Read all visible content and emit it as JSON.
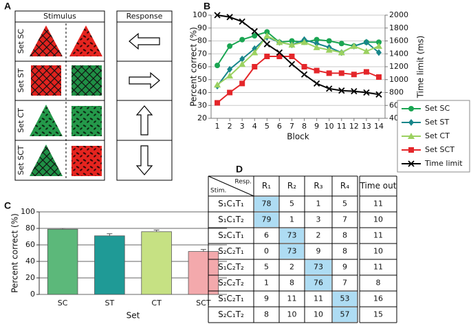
{
  "panel_labels": [
    "A",
    "B",
    "C",
    "D"
  ],
  "stimulus_response": {
    "stimulus_header": "Stimulus",
    "response_header": "Response",
    "rows": [
      "Set SC",
      "Set ST",
      "Set CT",
      "Set SCT"
    ]
  },
  "chart_data": [
    {
      "type": "line",
      "ylabel": "Percent correct (%)",
      "y2label": "Time limit (ms)",
      "xlabel": "Block",
      "x": [
        1,
        2,
        3,
        4,
        5,
        6,
        7,
        8,
        9,
        10,
        11,
        12,
        13,
        14
      ],
      "xlim": [
        0.5,
        14.5
      ],
      "xticks": [
        1,
        2,
        3,
        4,
        5,
        6,
        7,
        8,
        9,
        10,
        11,
        12,
        13,
        14
      ],
      "ylim": [
        20,
        100
      ],
      "yticks": [
        20,
        30,
        40,
        50,
        60,
        70,
        80,
        90,
        100
      ],
      "y2lim": [
        400,
        2000
      ],
      "y2ticks": [
        400,
        600,
        800,
        1000,
        1200,
        1400,
        1600,
        1800,
        2000
      ],
      "grid": true,
      "legend": "right",
      "series": [
        {
          "name": "Set SC",
          "color": "#1aa552",
          "marker": "circle",
          "values": [
            61,
            76,
            81,
            84,
            87,
            79,
            80,
            79,
            81,
            80,
            78,
            76,
            79,
            79
          ]
        },
        {
          "name": "Set ST",
          "color": "#17868a",
          "marker": "diamond",
          "values": [
            45,
            58,
            66,
            74,
            83,
            79,
            77,
            81,
            78,
            75,
            71,
            76,
            79,
            71
          ]
        },
        {
          "name": "Set CT",
          "color": "#9bd160",
          "marker": "triangle",
          "values": [
            46,
            53,
            62,
            71,
            84,
            79,
            77,
            79,
            75,
            73,
            71,
            76,
            72,
            76
          ]
        },
        {
          "name": "Set SCT",
          "color": "#e4262a",
          "marker": "square",
          "values": [
            32,
            40,
            47,
            60,
            68,
            68,
            68,
            60,
            57,
            55,
            55,
            54,
            56,
            52
          ]
        },
        {
          "name": "Time limit",
          "color": "#000000",
          "marker": "x",
          "axis": "y2",
          "values": [
            2000,
            1970,
            1900,
            1750,
            1550,
            1420,
            1240,
            1080,
            940,
            860,
            830,
            820,
            800,
            770
          ]
        }
      ]
    },
    {
      "type": "bar",
      "ylabel": "Percent correct (%)",
      "xlabel": "Set",
      "categories": [
        "SC",
        "ST",
        "CT",
        "SCT"
      ],
      "values": [
        79,
        71,
        76,
        52
      ],
      "errors": [
        1,
        2.5,
        2,
        2.5
      ],
      "colors": [
        "#5cb87a",
        "#1f9a96",
        "#c6e183",
        "#f3a9ac"
      ],
      "ylim": [
        0,
        100
      ],
      "yticks": [
        0,
        20,
        40,
        60,
        80,
        100
      ],
      "grid": true
    }
  ],
  "table": {
    "corner_top": "Resp.",
    "corner_bottom": "Stim.",
    "columns": [
      "R₁",
      "R₂",
      "R₃",
      "R₄",
      "Time out"
    ],
    "rows": [
      {
        "label": "S₁C₁T₁",
        "values": [
          78,
          5,
          1,
          5,
          11
        ]
      },
      {
        "label": "S₁C₁T₂",
        "values": [
          79,
          1,
          3,
          7,
          10
        ]
      },
      {
        "label": "S₂C₁T₁",
        "values": [
          6,
          73,
          2,
          8,
          11
        ]
      },
      {
        "label": "S₂C₂T₁",
        "values": [
          0,
          73,
          9,
          8,
          10
        ]
      },
      {
        "label": "S₁C₂T₂",
        "values": [
          5,
          2,
          73,
          9,
          11
        ]
      },
      {
        "label": "S₂C₂T₂",
        "values": [
          1,
          8,
          76,
          7,
          8
        ]
      },
      {
        "label": "S₁C₂T₁",
        "values": [
          9,
          11,
          11,
          53,
          16
        ]
      },
      {
        "label": "S₂C₁T₂",
        "values": [
          8,
          10,
          10,
          57,
          15
        ]
      }
    ]
  }
}
